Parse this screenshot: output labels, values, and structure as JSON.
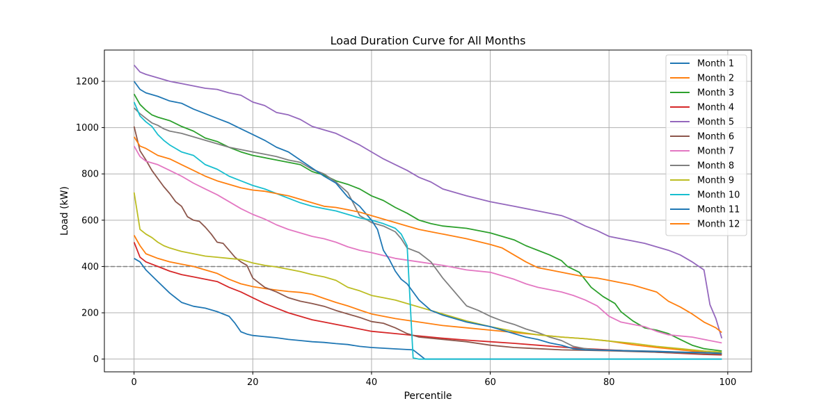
{
  "chart_data": {
    "type": "line",
    "title": "Load Duration Curve for All Months",
    "xlabel": "Percentile",
    "ylabel": "Load (kW)",
    "xlim": [
      -5,
      104
    ],
    "ylim": [
      -55,
      1335
    ],
    "xticks": [
      0,
      20,
      40,
      60,
      80,
      100
    ],
    "yticks": [
      0,
      200,
      400,
      600,
      800,
      1000,
      1200
    ],
    "grid": true,
    "legend_position": "top-right",
    "reference_line": {
      "y": 400,
      "style": "dashed",
      "color": "#808080"
    },
    "series": [
      {
        "name": "Month 1",
        "color": "#1f77b4",
        "x": [
          0,
          1,
          2,
          4,
          6,
          8,
          10,
          12,
          14,
          16,
          17,
          18,
          19,
          20,
          22,
          24,
          26,
          28,
          30,
          32,
          34,
          36,
          38,
          40,
          44,
          47,
          48,
          49,
          99
        ],
        "y": [
          435,
          420,
          385,
          335,
          285,
          245,
          228,
          220,
          205,
          185,
          155,
          118,
          108,
          102,
          97,
          92,
          85,
          80,
          75,
          72,
          67,
          63,
          55,
          50,
          44,
          40,
          20,
          0,
          0
        ]
      },
      {
        "name": "Month 2",
        "color": "#ff7f0e",
        "x": [
          0,
          1,
          2,
          4,
          6,
          8,
          10,
          12,
          14,
          16,
          18,
          20,
          22,
          24,
          26,
          28,
          30,
          32,
          34,
          36,
          38,
          40,
          44,
          48,
          52,
          56,
          60,
          64,
          68,
          72,
          76,
          80,
          84,
          88,
          92,
          96,
          99
        ],
        "y": [
          535,
          490,
          455,
          435,
          420,
          410,
          400,
          385,
          370,
          345,
          325,
          313,
          305,
          298,
          292,
          288,
          280,
          262,
          245,
          230,
          212,
          195,
          175,
          160,
          145,
          135,
          125,
          115,
          105,
          95,
          88,
          78,
          62,
          50,
          40,
          30,
          22
        ]
      },
      {
        "name": "Month 3",
        "color": "#2ca02c",
        "x": [
          0,
          1,
          2,
          3,
          4,
          6,
          8,
          10,
          12,
          14,
          16,
          18,
          20,
          24,
          28,
          30,
          32,
          34,
          36,
          38,
          40,
          42,
          44,
          46,
          48,
          50,
          52,
          56,
          60,
          64,
          66,
          68,
          70,
          72,
          73,
          75,
          77,
          79,
          80,
          81,
          82,
          84,
          86,
          88,
          90,
          92,
          94,
          96,
          99
        ],
        "y": [
          1145,
          1100,
          1075,
          1055,
          1045,
          1030,
          1005,
          985,
          955,
          940,
          915,
          895,
          880,
          860,
          840,
          810,
          795,
          770,
          755,
          735,
          705,
          685,
          655,
          630,
          600,
          585,
          575,
          565,
          545,
          515,
          490,
          470,
          450,
          425,
          400,
          375,
          310,
          270,
          255,
          240,
          205,
          165,
          135,
          125,
          110,
          85,
          60,
          45,
          35
        ]
      },
      {
        "name": "Month 4",
        "color": "#d62728",
        "x": [
          0,
          1,
          2,
          4,
          6,
          8,
          10,
          12,
          14,
          16,
          18,
          20,
          22,
          24,
          26,
          28,
          30,
          32,
          34,
          36,
          40,
          44,
          48,
          52,
          56,
          60,
          64,
          68,
          72,
          76,
          80,
          84,
          88,
          92,
          96,
          99
        ],
        "y": [
          505,
          440,
          420,
          400,
          380,
          365,
          355,
          345,
          335,
          310,
          290,
          265,
          240,
          220,
          200,
          185,
          170,
          160,
          150,
          140,
          120,
          110,
          100,
          90,
          82,
          75,
          68,
          60,
          52,
          45,
          40,
          35,
          30,
          25,
          20,
          18
        ]
      },
      {
        "name": "Month 5",
        "color": "#9467bd",
        "x": [
          0,
          1,
          2,
          4,
          6,
          8,
          10,
          12,
          14,
          16,
          18,
          20,
          22,
          24,
          26,
          28,
          30,
          32,
          34,
          36,
          38,
          40,
          42,
          44,
          46,
          48,
          50,
          52,
          56,
          60,
          64,
          68,
          72,
          74,
          76,
          78,
          80,
          82,
          84,
          86,
          88,
          90,
          92,
          94,
          96,
          97,
          98,
          99
        ],
        "y": [
          1270,
          1240,
          1230,
          1215,
          1200,
          1190,
          1180,
          1170,
          1165,
          1150,
          1140,
          1110,
          1095,
          1065,
          1055,
          1035,
          1005,
          990,
          975,
          950,
          925,
          895,
          865,
          840,
          815,
          785,
          765,
          735,
          705,
          680,
          660,
          640,
          620,
          600,
          575,
          555,
          530,
          520,
          510,
          500,
          485,
          470,
          450,
          420,
          385,
          235,
          175,
          90
        ]
      },
      {
        "name": "Month 6",
        "color": "#8c564b",
        "x": [
          0,
          1,
          2,
          3,
          4,
          5,
          6,
          7,
          8,
          9,
          10,
          11,
          12,
          13,
          14,
          15,
          16,
          17,
          18,
          19,
          20,
          21,
          22,
          24,
          26,
          28,
          30,
          32,
          34,
          36,
          38,
          40,
          42,
          44,
          46,
          48,
          52,
          56,
          60,
          64,
          68,
          72,
          76,
          80,
          84,
          88,
          92,
          96,
          99
        ],
        "y": [
          1005,
          900,
          860,
          815,
          780,
          745,
          715,
          680,
          660,
          615,
          600,
          595,
          570,
          540,
          505,
          500,
          470,
          440,
          420,
          405,
          350,
          330,
          310,
          290,
          265,
          250,
          240,
          228,
          210,
          195,
          180,
          162,
          155,
          135,
          110,
          95,
          85,
          75,
          60,
          50,
          45,
          40,
          38,
          36,
          33,
          30,
          26,
          22,
          20
        ]
      },
      {
        "name": "Month 7",
        "color": "#e377c2",
        "x": [
          0,
          1,
          2,
          4,
          6,
          8,
          10,
          12,
          14,
          16,
          18,
          20,
          22,
          24,
          26,
          28,
          30,
          32,
          34,
          36,
          38,
          40,
          44,
          48,
          52,
          56,
          60,
          62,
          64,
          66,
          68,
          70,
          72,
          74,
          76,
          78,
          80,
          82,
          84,
          86,
          88,
          90,
          92,
          94,
          96,
          99
        ],
        "y": [
          920,
          875,
          855,
          840,
          815,
          790,
          760,
          735,
          710,
          680,
          650,
          625,
          605,
          580,
          560,
          545,
          530,
          520,
          505,
          485,
          470,
          460,
          435,
          420,
          405,
          385,
          375,
          360,
          345,
          325,
          310,
          300,
          290,
          275,
          255,
          230,
          185,
          160,
          150,
          140,
          120,
          105,
          100,
          95,
          85,
          70
        ]
      },
      {
        "name": "Month 8",
        "color": "#7f7f7f",
        "x": [
          0,
          1,
          2,
          3,
          4,
          5,
          6,
          8,
          10,
          12,
          14,
          16,
          18,
          20,
          22,
          24,
          26,
          28,
          30,
          32,
          34,
          36,
          38,
          40,
          42,
          44,
          45,
          46,
          48,
          50,
          52,
          54,
          56,
          58,
          60,
          62,
          64,
          66,
          68,
          70,
          72,
          74,
          76,
          78,
          80,
          84,
          88,
          92,
          96,
          99
        ],
        "y": [
          1085,
          1060,
          1040,
          1020,
          1010,
          995,
          985,
          975,
          960,
          945,
          930,
          915,
          905,
          895,
          885,
          875,
          860,
          850,
          820,
          800,
          765,
          720,
          620,
          590,
          575,
          550,
          520,
          480,
          460,
          420,
          350,
          290,
          230,
          210,
          185,
          165,
          150,
          130,
          115,
          95,
          80,
          55,
          45,
          40,
          38,
          36,
          34,
          30,
          28,
          26
        ]
      },
      {
        "name": "Month 9",
        "color": "#bcbd22",
        "x": [
          0,
          1,
          2,
          3,
          4,
          5,
          6,
          8,
          10,
          12,
          14,
          16,
          18,
          20,
          22,
          24,
          26,
          28,
          30,
          32,
          34,
          36,
          38,
          40,
          42,
          44,
          46,
          48,
          50,
          52,
          56,
          60,
          64,
          68,
          72,
          76,
          80,
          84,
          88,
          92,
          96,
          99
        ],
        "y": [
          720,
          560,
          540,
          525,
          505,
          490,
          480,
          465,
          455,
          445,
          440,
          435,
          430,
          415,
          405,
          398,
          388,
          378,
          365,
          355,
          340,
          310,
          295,
          275,
          265,
          255,
          240,
          225,
          210,
          195,
          165,
          140,
          120,
          105,
          95,
          88,
          78,
          68,
          55,
          45,
          35,
          30
        ]
      },
      {
        "name": "Month 10",
        "color": "#17becf",
        "x": [
          0,
          1,
          2,
          3,
          4,
          5,
          6,
          8,
          10,
          12,
          14,
          16,
          18,
          20,
          22,
          24,
          26,
          28,
          30,
          32,
          34,
          36,
          38,
          40,
          42,
          44,
          45,
          46,
          47,
          48,
          99
        ],
        "y": [
          1110,
          1050,
          1025,
          1005,
          970,
          945,
          925,
          895,
          880,
          840,
          820,
          790,
          770,
          750,
          735,
          715,
          695,
          675,
          660,
          650,
          640,
          625,
          610,
          600,
          585,
          565,
          540,
          490,
          5,
          0,
          0
        ]
      },
      {
        "name": "Month 11",
        "color": "#1f77b4",
        "x": [
          0,
          1,
          2,
          4,
          6,
          8,
          10,
          12,
          14,
          16,
          18,
          20,
          22,
          24,
          26,
          28,
          30,
          32,
          34,
          36,
          38,
          40,
          41,
          42,
          43,
          44,
          45,
          46,
          47,
          48,
          50,
          52,
          54,
          56,
          58,
          60,
          62,
          64,
          66,
          68,
          70,
          72,
          74,
          76,
          80,
          84,
          88,
          92,
          96,
          99
        ],
        "y": [
          1200,
          1165,
          1150,
          1135,
          1115,
          1105,
          1080,
          1060,
          1040,
          1020,
          995,
          970,
          945,
          915,
          895,
          860,
          825,
          790,
          760,
          700,
          660,
          600,
          560,
          470,
          430,
          380,
          345,
          325,
          290,
          255,
          210,
          190,
          175,
          160,
          150,
          140,
          125,
          110,
          95,
          85,
          70,
          60,
          45,
          40,
          38,
          35,
          33,
          30,
          28,
          25
        ]
      },
      {
        "name": "Month 12",
        "color": "#ff7f0e",
        "x": [
          0,
          1,
          2,
          4,
          6,
          8,
          10,
          12,
          14,
          16,
          18,
          20,
          22,
          24,
          26,
          28,
          30,
          32,
          34,
          36,
          38,
          40,
          42,
          44,
          46,
          48,
          50,
          52,
          56,
          60,
          62,
          64,
          66,
          68,
          70,
          72,
          74,
          76,
          78,
          80,
          82,
          84,
          86,
          88,
          90,
          92,
          94,
          96,
          98,
          99
        ],
        "y": [
          960,
          920,
          910,
          880,
          865,
          840,
          815,
          790,
          770,
          755,
          740,
          730,
          725,
          715,
          705,
          690,
          675,
          660,
          655,
          645,
          635,
          620,
          605,
          590,
          575,
          560,
          550,
          540,
          520,
          495,
          480,
          450,
          420,
          395,
          385,
          375,
          365,
          355,
          350,
          340,
          330,
          320,
          305,
          290,
          250,
          225,
          195,
          160,
          135,
          115
        ]
      }
    ]
  }
}
